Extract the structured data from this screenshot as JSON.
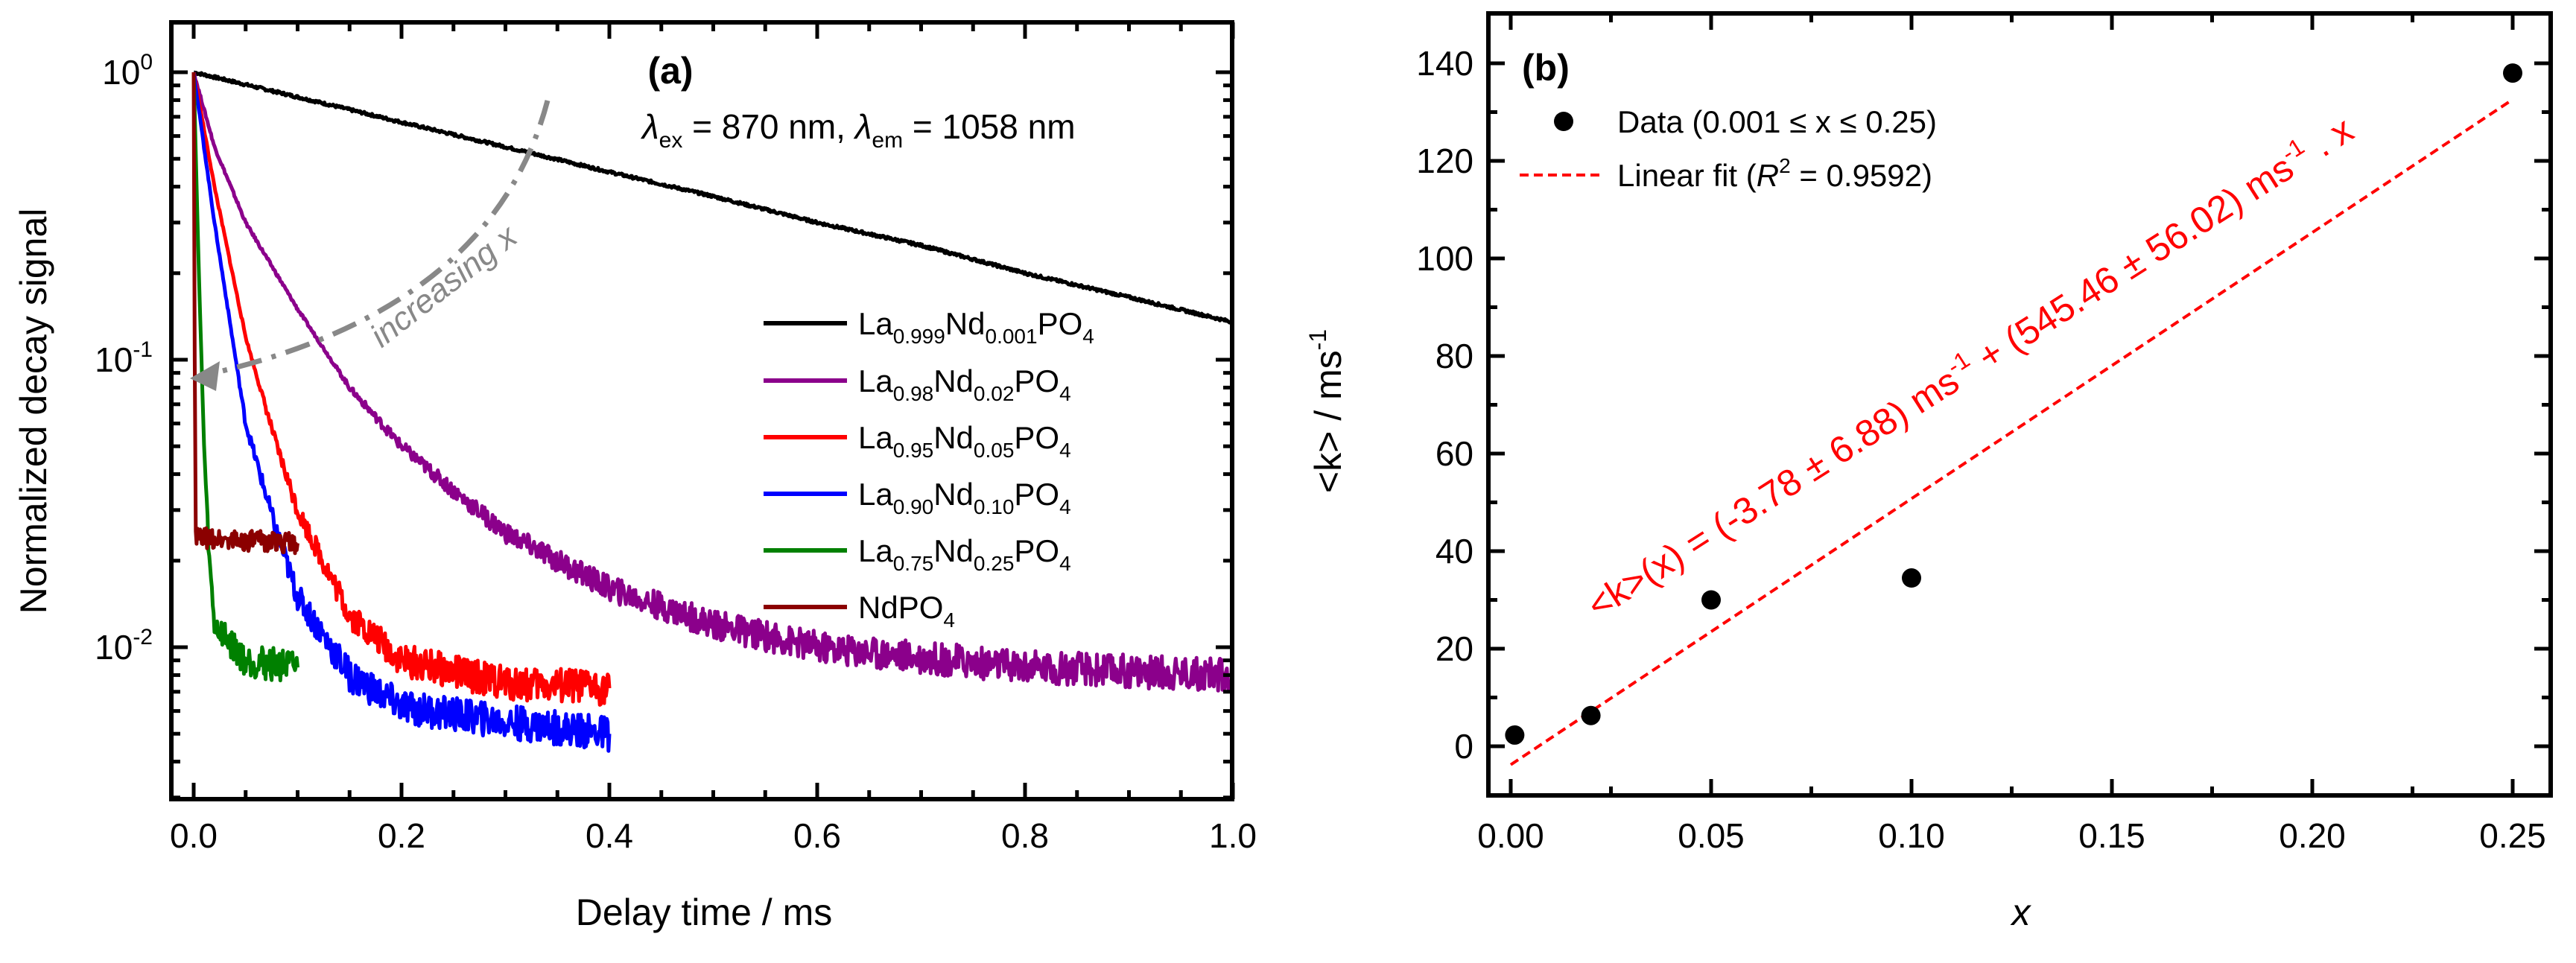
{
  "chart_data": [
    {
      "type": "line",
      "panel_label": "(a)",
      "annotation": {
        "lambda_ex": "870 nm",
        "lambda_em": "1058 nm",
        "ex_sub": "ex",
        "em_sub": "em",
        "text_ex": " = 870 nm, ",
        "text_em": " = 1058 nm"
      },
      "arrow_label": "increasing x",
      "xlabel": "Delay time / ms",
      "ylabel": "Normalized decay signal",
      "xscale": "linear",
      "yscale": "log",
      "xlim": [
        -0.02,
        1.0
      ],
      "ylim": [
        0.003,
        1.5
      ],
      "xticks": [
        0.0,
        0.2,
        0.4,
        0.6,
        0.8,
        1.0
      ],
      "xtick_labels": [
        "0.0",
        "0.2",
        "0.4",
        "0.6",
        "0.8",
        "1.0"
      ],
      "yticks": [
        1,
        0.1,
        0.01
      ],
      "ytick_labels": [
        {
          "base": "10",
          "exp": "0"
        },
        {
          "base": "10",
          "exp": "-1"
        },
        {
          "base": "10",
          "exp": "-2"
        }
      ],
      "legend_position": "center-right",
      "series": [
        {
          "name": "La0.999Nd0.001PO4",
          "label_parts": [
            "La",
            "0.999",
            "Nd",
            "0.001",
            "PO",
            "4"
          ],
          "color": "#000000",
          "x": [
            0,
            0.1,
            0.2,
            0.3,
            0.4,
            0.5,
            0.6,
            0.7,
            0.8,
            0.9,
            1.0
          ],
          "y": [
            1,
            0.82,
            0.67,
            0.55,
            0.45,
            0.37,
            0.3,
            0.25,
            0.2,
            0.165,
            0.135
          ]
        },
        {
          "name": "La0.98Nd0.02PO4",
          "label_parts": [
            "La",
            "0.98",
            "Nd",
            "0.02",
            "PO",
            "4"
          ],
          "color": "#8B008B",
          "x": [
            0,
            0.02,
            0.05,
            0.1,
            0.15,
            0.2,
            0.25,
            0.3,
            0.4,
            0.5,
            0.6,
            0.8,
            1.0
          ],
          "y": [
            1,
            0.55,
            0.3,
            0.15,
            0.08,
            0.05,
            0.035,
            0.025,
            0.016,
            0.012,
            0.01,
            0.0085,
            0.008
          ]
        },
        {
          "name": "La0.95Nd0.05PO4",
          "label_parts": [
            "La",
            "0.95",
            "Nd",
            "0.05",
            "PO",
            "4"
          ],
          "color": "#FF0000",
          "x": [
            0,
            0.02,
            0.05,
            0.08,
            0.1,
            0.15,
            0.2,
            0.3,
            0.4
          ],
          "y": [
            1,
            0.4,
            0.12,
            0.05,
            0.03,
            0.013,
            0.009,
            0.0075,
            0.0072
          ]
        },
        {
          "name": "La0.90Nd0.10PO4",
          "label_parts": [
            "La",
            "0.90",
            "Nd",
            "0.10",
            "PO",
            "4"
          ],
          "color": "#0000FF",
          "x": [
            0,
            0.02,
            0.05,
            0.08,
            0.1,
            0.15,
            0.2,
            0.3,
            0.4
          ],
          "y": [
            1,
            0.3,
            0.06,
            0.025,
            0.015,
            0.008,
            0.0062,
            0.0055,
            0.005
          ]
        },
        {
          "name": "La0.75Nd0.25PO4",
          "label_parts": [
            "La",
            "0.75",
            "Nd",
            "0.25",
            "PO",
            "4"
          ],
          "color": "#008000",
          "x": [
            0,
            0.005,
            0.01,
            0.015,
            0.02,
            0.05,
            0.1
          ],
          "y": [
            1,
            0.2,
            0.05,
            0.02,
            0.012,
            0.009,
            0.0085
          ]
        },
        {
          "name": "NdPO4",
          "label_parts": [
            "NdPO",
            "4"
          ],
          "color": "#8B0000",
          "x": [
            0,
            0.001,
            0.002,
            0.1
          ],
          "y": [
            1,
            0.1,
            0.024,
            0.023
          ]
        }
      ]
    },
    {
      "type": "scatter",
      "panel_label": "(b)",
      "xlabel": "x",
      "ylabel": "<k> / ms",
      "ylabel_sup": "-1",
      "xlim": [
        -0.0056,
        0.2595
      ],
      "ylim": [
        -10,
        150
      ],
      "xticks": [
        0.0,
        0.05,
        0.1,
        0.15,
        0.2,
        0.25
      ],
      "xtick_labels": [
        "0.00",
        "0.05",
        "0.10",
        "0.15",
        "0.20",
        "0.25"
      ],
      "yticks": [
        0,
        20,
        40,
        60,
        80,
        100,
        120,
        140
      ],
      "ytick_labels": [
        "0",
        "20",
        "40",
        "60",
        "80",
        "100",
        "120",
        "140"
      ],
      "legend_position": "top-left",
      "legend": {
        "data_label": "Data (0.001 ≤ x ≤ 0.25)",
        "fit_label_pre": "Linear fit (",
        "fit_label_R": "R",
        "fit_label_sup": "2",
        "fit_label_post": " = 0.9592)"
      },
      "points": {
        "name": "Data",
        "color": "#000000",
        "x": [
          0.001,
          0.02,
          0.05,
          0.1,
          0.25
        ],
        "y": [
          2.3,
          6.3,
          30,
          34.5,
          138
        ]
      },
      "fit": {
        "name": "Linear fit",
        "color": "#FF0000",
        "intercept": -3.78,
        "slope": 545.46,
        "x_range": [
          0.0,
          0.25
        ],
        "R2": 0.9592,
        "equation_parts": [
          "<k>(x) = (-3.78 ± 6.88) ms",
          "-1",
          " + (545.46 ± 56.02) ms",
          "-1",
          " . x"
        ]
      }
    }
  ]
}
